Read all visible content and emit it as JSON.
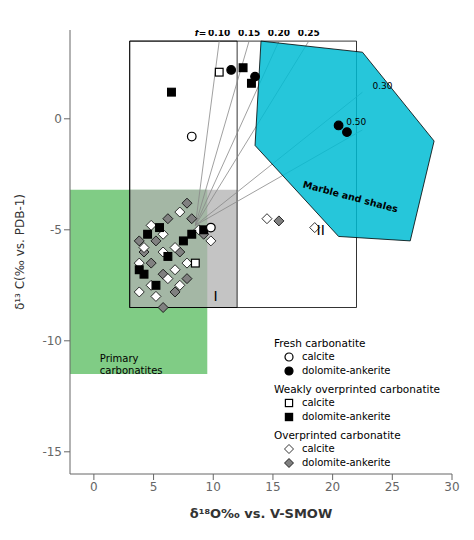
{
  "chart_data": {
    "type": "scatter",
    "x_label": "δ¹⁸O‰ vs. V-SMOW",
    "y_label": "δ¹³ C(‰ vs. PDB-1)",
    "xlim": [
      -2,
      30
    ],
    "ylim": [
      -16,
      4
    ],
    "xticks": [
      0,
      5,
      10,
      15,
      20,
      25,
      30
    ],
    "yticks": [
      -15,
      -10,
      -5,
      0
    ],
    "grid": false,
    "legend": "lower right",
    "green_box": {
      "x0": -2,
      "x1": 9.5,
      "y0": -11.5,
      "y1": -3.2,
      "color": "#3cb043"
    },
    "gray_box": {
      "x0": 3,
      "x1": 12,
      "y0": -8.5,
      "y1": -3.2,
      "color": "#b0b0b0"
    },
    "rect_I": {
      "x0": 3,
      "x1": 12,
      "y0": -8.5,
      "y1": 3.5
    },
    "rect_II": {
      "x0": 3,
      "x1": 22,
      "y0": -8.5,
      "y1": 3.5
    },
    "cyan_polygon": {
      "points": [
        [
          14.0,
          3.5
        ],
        [
          22.5,
          3.0
        ],
        [
          28.5,
          -1.0
        ],
        [
          26.5,
          -5.5
        ],
        [
          20.5,
          -5.3
        ],
        [
          13.5,
          -1.2
        ]
      ],
      "color": "#00bcd4"
    },
    "mixing_lines": {
      "origin": [
        8.5,
        -4.8
      ],
      "ends": [
        [
          10.5,
          3.5
        ],
        [
          13.0,
          3.5
        ],
        [
          15.5,
          3.5
        ],
        [
          18.0,
          3.5
        ],
        [
          22.5,
          1.2
        ],
        [
          22.5,
          -0.5
        ]
      ]
    },
    "f_label": "f=",
    "f_labels": [
      {
        "text": "0.10",
        "x": 10.5,
        "y": 3.7
      },
      {
        "text": "0.15",
        "x": 13.0,
        "y": 3.7
      },
      {
        "text": "0.20",
        "x": 15.5,
        "y": 3.7
      },
      {
        "text": "0.25",
        "x": 18.0,
        "y": 3.7
      }
    ],
    "side_labels": [
      {
        "text": "0.30",
        "x": 23.0,
        "y": 1.5
      },
      {
        "text": "0.50",
        "x": 20.8,
        "y": -0.15
      }
    ],
    "annotations": [
      {
        "text": "I",
        "x": 10.2,
        "y": -8.0
      },
      {
        "text": "II",
        "x": 19.0,
        "y": -5.0
      },
      {
        "text": "Primary\ncarbonatites",
        "x": 0.5,
        "y": -10.5
      },
      {
        "text": "Marble and shales",
        "x": 21.5,
        "y": -3.5
      }
    ],
    "series": [
      {
        "group": "Fresh carbonatite",
        "name": "calcite",
        "marker": "circle",
        "color": "white",
        "values": [
          [
            8.2,
            -0.8
          ],
          [
            9.8,
            -4.9
          ]
        ]
      },
      {
        "group": "Fresh carbonatite",
        "name": "dolomite-ankerite",
        "marker": "circle",
        "color": "black",
        "values": [
          [
            11.5,
            2.2
          ],
          [
            13.5,
            1.9
          ],
          [
            20.5,
            -0.3
          ],
          [
            21.2,
            -0.6
          ]
        ]
      },
      {
        "group": "Weakly overprinted carbonatite",
        "name": "calcite",
        "marker": "square",
        "color": "white",
        "values": [
          [
            10.5,
            2.1
          ],
          [
            8.5,
            -6.5
          ]
        ]
      },
      {
        "group": "Weakly overprinted carbonatite",
        "name": "dolomite-ankerite",
        "marker": "square",
        "color": "black",
        "values": [
          [
            12.5,
            2.3
          ],
          [
            13.2,
            1.6
          ],
          [
            6.5,
            1.2
          ],
          [
            4.5,
            -5.2
          ],
          [
            5.5,
            -4.9
          ],
          [
            3.8,
            -6.8
          ],
          [
            7.5,
            -5.5
          ],
          [
            8.2,
            -5.2
          ],
          [
            9.2,
            -5.0
          ],
          [
            6.2,
            -6.2
          ],
          [
            5.2,
            -7.5
          ],
          [
            4.2,
            -7.0
          ]
        ]
      },
      {
        "group": "Overprinted carbonatite",
        "name": "calcite",
        "marker": "diamond",
        "color": "white",
        "values": [
          [
            14.5,
            -4.5
          ],
          [
            18.5,
            -4.9
          ],
          [
            7.2,
            -4.2
          ],
          [
            8.8,
            -5.0
          ],
          [
            9.8,
            -5.5
          ],
          [
            5.8,
            -6.0
          ],
          [
            6.8,
            -5.8
          ],
          [
            7.8,
            -6.5
          ],
          [
            6.2,
            -7.2
          ],
          [
            5.2,
            -8.0
          ],
          [
            4.8,
            -7.5
          ],
          [
            3.8,
            -7.8
          ],
          [
            5.8,
            -5.2
          ],
          [
            4.2,
            -5.8
          ],
          [
            3.8,
            -6.5
          ],
          [
            6.8,
            -6.8
          ],
          [
            7.2,
            -7.5
          ],
          [
            4.8,
            -4.8
          ]
        ]
      },
      {
        "group": "Overprinted carbonatite",
        "name": "dolomite-ankerite",
        "marker": "diamond",
        "color": "gray",
        "values": [
          [
            15.5,
            -4.6
          ],
          [
            7.8,
            -3.8
          ],
          [
            8.2,
            -4.5
          ],
          [
            9.2,
            -5.2
          ],
          [
            5.8,
            -7.0
          ],
          [
            4.8,
            -6.5
          ],
          [
            6.8,
            -7.8
          ],
          [
            7.8,
            -7.2
          ],
          [
            5.2,
            -5.5
          ],
          [
            4.2,
            -6.0
          ],
          [
            3.8,
            -5.5
          ],
          [
            6.2,
            -4.5
          ],
          [
            7.2,
            -6.0
          ],
          [
            5.8,
            -8.5
          ]
        ]
      }
    ]
  }
}
